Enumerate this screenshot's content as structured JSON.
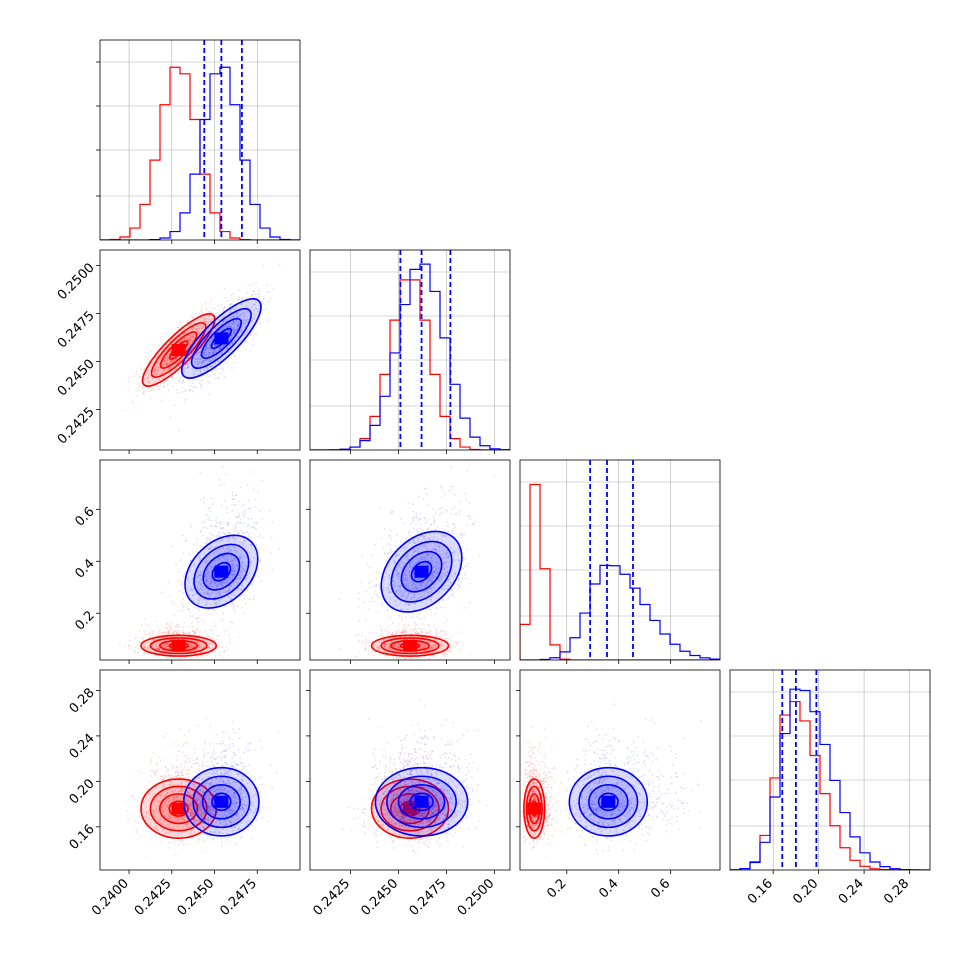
{
  "colors": {
    "red": "#ff0000",
    "blue": "#0000ff",
    "grid": "#b0b0b0"
  },
  "chart_data": {
    "type": "corner",
    "title": "",
    "variables": [
      {
        "range": [
          0.2383,
          0.25
        ],
        "ticks": [
          0.24,
          0.2425,
          0.245,
          0.2475
        ],
        "tick_labels": [
          "0.2400",
          "0.2425",
          "0.2450",
          "0.2475"
        ]
      },
      {
        "range": [
          0.2404,
          0.2508
        ],
        "ticks": [
          0.2425,
          0.245,
          0.2475,
          0.25
        ],
        "tick_labels": [
          "0.2425",
          "0.2450",
          "0.2475",
          "0.2500"
        ]
      },
      {
        "range": [
          0.02,
          0.79
        ],
        "ticks": [
          0.2,
          0.4,
          0.6
        ],
        "tick_labels": [
          "0.2",
          "0.4",
          "0.6"
        ]
      },
      {
        "range": [
          0.122,
          0.298
        ],
        "ticks": [
          0.16,
          0.2,
          0.24,
          0.28
        ],
        "tick_labels": [
          "0.16",
          "0.20",
          "0.24",
          "0.28"
        ]
      }
    ],
    "series": [
      {
        "color": "red",
        "mean": [
          0.2429,
          0.2456,
          0.075,
          0.176
        ],
        "sd": [
          0.0011,
          0.001,
          0.02,
          0.013
        ],
        "corr": [
          [
            1,
            0.85,
            0,
            0
          ],
          [
            0.85,
            1,
            0,
            0
          ],
          [
            0,
            0,
            1,
            0
          ],
          [
            0,
            0,
            0,
            1
          ]
        ],
        "hist_peak": [
          0.88,
          0.88,
          0.88,
          0.85
        ],
        "quantiles": null
      },
      {
        "color": "blue",
        "mean": [
          0.2454,
          0.2462,
          0.36,
          0.182
        ],
        "sd": [
          0.0011,
          0.0012,
          0.075,
          0.015
        ],
        "corr": [
          [
            1,
            0.8,
            0.35,
            0.1
          ],
          [
            0.8,
            1,
            0.35,
            0.1
          ],
          [
            0.35,
            0.35,
            1,
            0.05
          ],
          [
            0.1,
            0.1,
            0.05,
            1
          ]
        ],
        "hist_peak": [
          0.88,
          0.94,
          0.48,
          0.92
        ],
        "quantiles": [
          [
            0.2444,
            0.2454,
            0.2466
          ],
          [
            0.2451,
            0.2462,
            0.2477
          ],
          [
            0.29,
            0.355,
            0.455
          ],
          [
            0.168,
            0.18,
            0.198
          ]
        ]
      }
    ],
    "contour_levels": [
      0.5,
      1.0,
      1.5,
      2.0
    ],
    "grid": true,
    "legend": "none"
  }
}
